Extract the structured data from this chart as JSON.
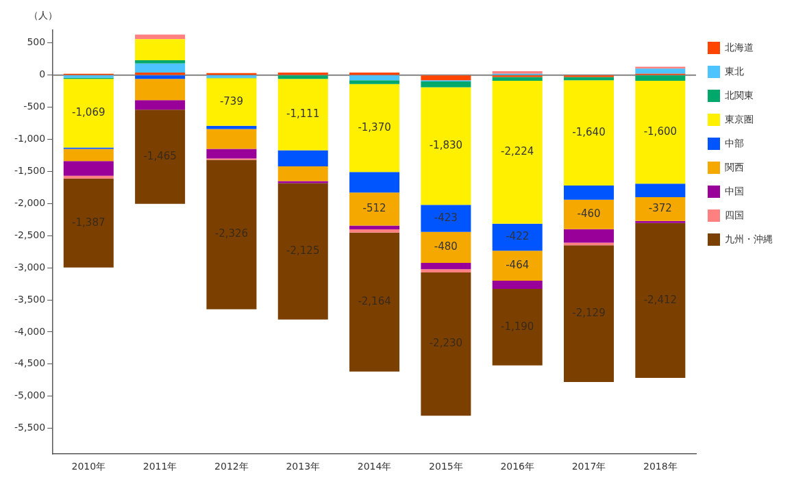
{
  "chart_data": {
    "type": "bar",
    "stacked": true,
    "ylabel": "（人）",
    "categories": [
      "2010年",
      "2011年",
      "2012年",
      "2013年",
      "2014年",
      "2015年",
      "2016年",
      "2017年",
      "2018年"
    ],
    "ylim": [
      -5900,
      700
    ],
    "yticks": [
      500,
      0,
      -500,
      {
        "value": -1000,
        "label": "-1,000"
      },
      {
        "value": -1500,
        "label": "-1,500"
      },
      {
        "value": -2000,
        "label": "-2,000"
      },
      {
        "value": -2500,
        "label": "-2,500"
      },
      {
        "value": -3000,
        "label": "-3,000"
      },
      {
        "value": -3500,
        "label": "-3,500"
      },
      {
        "value": -4000,
        "label": "-4,000"
      },
      {
        "value": -4500,
        "label": "-4,500"
      },
      {
        "value": -5000,
        "label": "-5,000"
      },
      {
        "value": -5500,
        "label": "-5,500"
      }
    ],
    "grid": false,
    "legend": "top right",
    "ref_lines": [
      {
        "axis": "y",
        "value": 0,
        "color": "#808080"
      }
    ],
    "series": [
      {
        "name": "北海道",
        "color": "#ff4500",
        "values": [
          20,
          40,
          30,
          40,
          40,
          -80,
          -30,
          -30,
          20
        ]
      },
      {
        "name": "東北",
        "color": "#4dc3ff",
        "values": [
          -40,
          140,
          -40,
          null,
          -80,
          -20,
          20,
          null,
          80
        ]
      },
      {
        "name": "北関東",
        "color": "#00a86b",
        "values": [
          -20,
          50,
          -10,
          -60,
          -60,
          -90,
          -60,
          -50,
          -90
        ]
      },
      {
        "name": "東京圏",
        "color": "#fff000",
        "values": [
          -1069,
          330,
          -739,
          -1111,
          -1370,
          -1830,
          -2224,
          -1640,
          -1600
        ],
        "value_labels": [
          "-1,069",
          null,
          "-739",
          "-1,111",
          "-1,370",
          "-1,830",
          "-2,224",
          "-1,640",
          "-1,600"
        ]
      },
      {
        "name": "中部",
        "color": "#0055ff",
        "values": [
          -20,
          -60,
          -50,
          -250,
          -320,
          -423,
          -422,
          -220,
          -210
        ],
        "value_labels": [
          null,
          null,
          null,
          null,
          null,
          "-423",
          "-422",
          null,
          null
        ]
      },
      {
        "name": "関西",
        "color": "#f5a800",
        "values": [
          -190,
          -330,
          -310,
          -230,
          -512,
          -480,
          -464,
          -460,
          -372
        ],
        "value_labels": [
          null,
          null,
          null,
          null,
          "-512",
          "-480",
          "-464",
          "-460",
          "-372"
        ]
      },
      {
        "name": "中国",
        "color": "#990099",
        "values": [
          -230,
          -150,
          -150,
          -30,
          -60,
          -100,
          -130,
          -210,
          -30
        ]
      },
      {
        "name": "四国",
        "color": "#ff8080",
        "values": [
          -40,
          70,
          -20,
          null,
          -50,
          -50,
          40,
          -40,
          30
        ]
      },
      {
        "name": "九州・沖縄",
        "color": "#7b3f00",
        "values": [
          -1387,
          -1465,
          -2326,
          -2125,
          -2164,
          -2230,
          -1190,
          -2129,
          -2412
        ],
        "value_labels": [
          "-1,387",
          "-1,465",
          "-2,326",
          "-2,125",
          "-2,164",
          "-2,230",
          "-1,190",
          "-2,129",
          "-2,412"
        ]
      }
    ]
  }
}
